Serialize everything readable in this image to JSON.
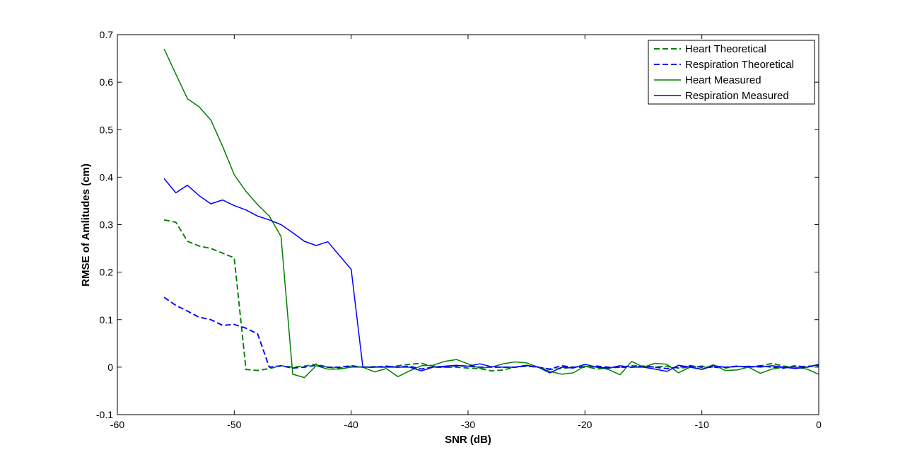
{
  "chart_data": {
    "type": "line",
    "title": "",
    "xlabel": "SNR (dB)",
    "ylabel": "RMSE of Amlitudes (cm)",
    "xlim": [
      -60,
      0
    ],
    "ylim": [
      -0.1,
      0.7
    ],
    "x_ticks": [
      -60,
      -50,
      -40,
      -30,
      -20,
      -10,
      0
    ],
    "y_ticks": [
      -0.1,
      0,
      0.1,
      0.2,
      0.3,
      0.4,
      0.5,
      0.6,
      0.7
    ],
    "grid": false,
    "legend_position": "top-right",
    "series": [
      {
        "name": "Heart Theoretical",
        "color": "#008000",
        "style": "dashed",
        "x": [
          -56,
          -55,
          -54,
          -53,
          -52,
          -51,
          -50,
          -49,
          -48,
          -47,
          -46,
          -45,
          -44,
          -43,
          -42,
          -41,
          -40,
          -39,
          -38,
          -37,
          -36,
          -35,
          -34,
          -33,
          -32,
          -31,
          -30,
          -29,
          -28,
          -27,
          -26,
          -25,
          -24,
          -23,
          -22,
          -21,
          -20,
          -19,
          -18,
          -17,
          -16,
          -15,
          -14,
          -13,
          -12,
          -11,
          -10,
          -9,
          -8,
          -7,
          -6,
          -5,
          -4,
          -3,
          -2,
          -1,
          0
        ],
        "y": [
          0.31,
          0.305,
          0.265,
          0.255,
          0.25,
          0.24,
          0.23,
          -0.005,
          -0.007,
          -0.003,
          0.003,
          0.0,
          0.002,
          0.006,
          0.0,
          -0.002,
          0.002,
          0.0,
          0.001,
          0.0,
          0.003,
          0.006,
          0.008,
          0.002,
          0.0,
          0.0,
          -0.002,
          -0.003,
          -0.008,
          -0.006,
          0.0,
          0.003,
          0.0,
          -0.005,
          -0.003,
          0.0,
          0.002,
          -0.004,
          -0.002,
          0.0,
          0.003,
          0.002,
          0.0,
          0.002,
          -0.002,
          0.0,
          0.002,
          0.0,
          -0.002,
          0.002,
          0.0,
          0.002,
          0.008,
          0.002,
          0.0,
          0.002,
          0.002
        ]
      },
      {
        "name": "Respiration Theoretical",
        "color": "#0000FF",
        "style": "dashed",
        "x": [
          -56,
          -55,
          -54,
          -53,
          -52,
          -51,
          -50,
          -49,
          -48,
          -47,
          -46,
          -45,
          -44,
          -43,
          -42,
          -41,
          -40,
          -39,
          -38,
          -37,
          -36,
          -35,
          -34,
          -33,
          -32,
          -31,
          -30,
          -29,
          -28,
          -27,
          -26,
          -25,
          -24,
          -23,
          -22,
          -21,
          -20,
          -19,
          -18,
          -17,
          -16,
          -15,
          -14,
          -13,
          -12,
          -11,
          -10,
          -9,
          -8,
          -7,
          -6,
          -5,
          -4,
          -3,
          -2,
          -1,
          0
        ],
        "y": [
          0.147,
          0.13,
          0.118,
          0.105,
          0.1,
          0.088,
          0.09,
          0.082,
          0.07,
          0.0,
          0.003,
          -0.002,
          0.0,
          0.004,
          0.0,
          0.0,
          0.003,
          0.0,
          0.0,
          0.002,
          0.0,
          0.002,
          -0.004,
          0.0,
          0.0,
          0.003,
          0.002,
          0.0,
          0.0,
          0.0,
          0.0,
          0.002,
          0.0,
          -0.004,
          0.003,
          0.0,
          0.0,
          0.002,
          0.0,
          0.0,
          0.0,
          0.002,
          0.0,
          -0.003,
          0.0,
          0.003,
          0.0,
          0.0,
          0.0,
          0.002,
          0.0,
          0.003,
          0.0,
          -0.002,
          0.003,
          0.0,
          0.005
        ]
      },
      {
        "name": "Heart Measured",
        "color": "#008000",
        "style": "solid",
        "x": [
          -56,
          -55,
          -54,
          -53,
          -52,
          -51,
          -50,
          -49,
          -48,
          -47,
          -46,
          -45,
          -44,
          -43,
          -42,
          -41,
          -40,
          -39,
          -38,
          -37,
          -36,
          -35,
          -34,
          -33,
          -32,
          -31,
          -30,
          -29,
          -28,
          -27,
          -26,
          -25,
          -24,
          -23,
          -22,
          -21,
          -20,
          -19,
          -18,
          -17,
          -16,
          -15,
          -14,
          -13,
          -12,
          -11,
          -10,
          -9,
          -8,
          -7,
          -6,
          -5,
          -4,
          -3,
          -2,
          -1,
          0
        ],
        "y": [
          0.67,
          0.617,
          0.565,
          0.548,
          0.52,
          0.465,
          0.405,
          0.37,
          0.342,
          0.318,
          0.275,
          -0.015,
          -0.022,
          0.003,
          -0.004,
          -0.004,
          0.0,
          0.0,
          -0.01,
          -0.003,
          -0.02,
          -0.008,
          0.003,
          0.004,
          0.012,
          0.016,
          0.007,
          -0.002,
          0.0,
          0.007,
          0.011,
          0.009,
          0.0,
          -0.009,
          -0.015,
          -0.012,
          0.002,
          0.0,
          -0.005,
          -0.016,
          0.012,
          0.0,
          0.008,
          0.006,
          -0.012,
          0.0,
          -0.004,
          0.005,
          -0.007,
          -0.006,
          0.0,
          -0.013,
          -0.004,
          0.0,
          0.0,
          -0.004,
          -0.015
        ]
      },
      {
        "name": "Respiration Measured",
        "color": "#0000FF",
        "style": "solid",
        "x": [
          -56,
          -55,
          -54,
          -53,
          -52,
          -51,
          -50,
          -49,
          -48,
          -47,
          -46,
          -45,
          -44,
          -43,
          -42,
          -41,
          -40,
          -39,
          -38,
          -37,
          -36,
          -35,
          -34,
          -33,
          -32,
          -31,
          -30,
          -29,
          -28,
          -27,
          -26,
          -25,
          -24,
          -23,
          -22,
          -21,
          -20,
          -19,
          -18,
          -17,
          -16,
          -15,
          -14,
          -13,
          -12,
          -11,
          -10,
          -9,
          -8,
          -7,
          -6,
          -5,
          -4,
          -3,
          -2,
          -1,
          0
        ],
        "y": [
          0.397,
          0.367,
          0.383,
          0.361,
          0.344,
          0.352,
          0.34,
          0.331,
          0.318,
          0.31,
          0.3,
          0.283,
          0.265,
          0.256,
          0.264,
          0.235,
          0.206,
          0.0,
          0.0,
          0.0,
          0.0,
          0.0,
          -0.008,
          0.0,
          0.002,
          0.004,
          0.002,
          0.007,
          0.001,
          0.0,
          0.0,
          0.004,
          0.0,
          -0.012,
          0.0,
          -0.002,
          0.006,
          0.0,
          -0.002,
          0.003,
          0.0,
          0.0,
          -0.004,
          -0.009,
          0.004,
          0.0,
          -0.005,
          0.003,
          0.0,
          0.001,
          0.002,
          0.0,
          0.003,
          0.0,
          -0.003,
          0.0,
          0.006
        ]
      }
    ]
  }
}
